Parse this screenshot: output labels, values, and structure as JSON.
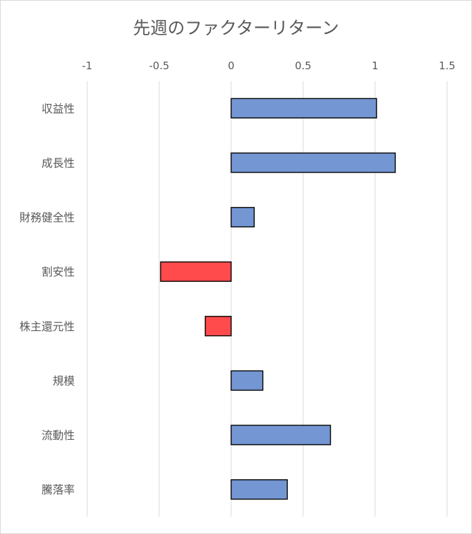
{
  "chart_data": {
    "type": "bar",
    "orientation": "horizontal",
    "title": "先週のファクターリターン",
    "categories": [
      "収益性",
      "成長性",
      "財務健全性",
      "割安性",
      "株主還元性",
      "規模",
      "流動性",
      "騰落率"
    ],
    "values": [
      1.01,
      1.14,
      0.16,
      -0.49,
      -0.18,
      0.22,
      0.69,
      0.39
    ],
    "xlim": [
      -1,
      1.5
    ],
    "xticks": [
      -1,
      -0.5,
      0,
      0.5,
      1,
      1.5
    ],
    "xtick_labels": [
      "-1",
      "-0.5",
      "0",
      "0.5",
      "1",
      "1.5"
    ],
    "axis_position": "top",
    "grid": true,
    "colors": {
      "positive": "#7496d2",
      "negative": "#ff4b4b"
    }
  }
}
